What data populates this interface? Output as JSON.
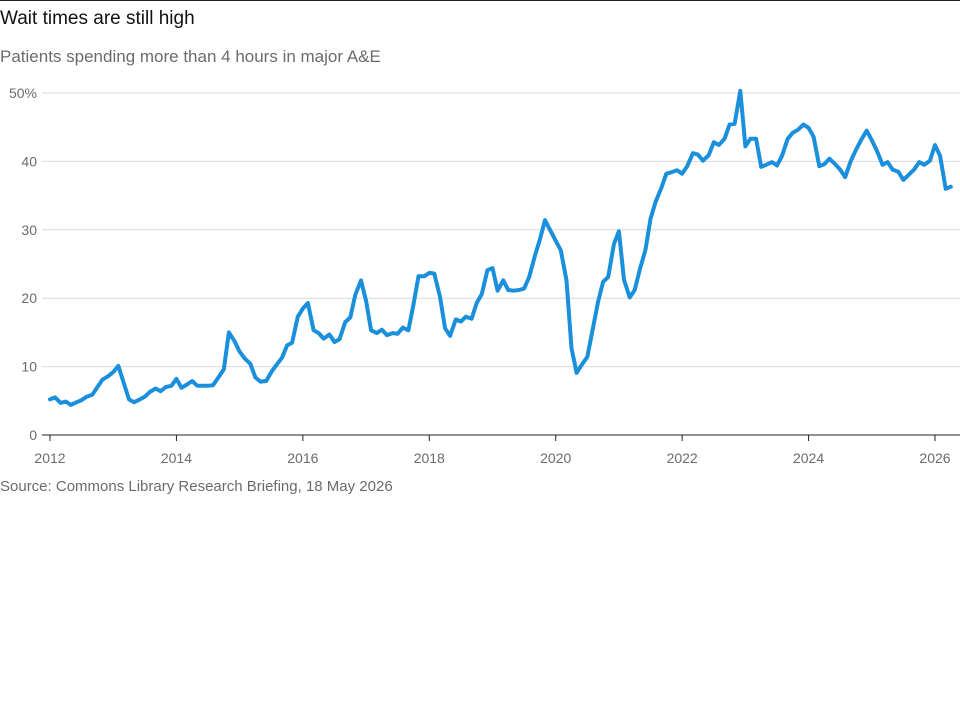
{
  "title": "Wait times are still high",
  "subtitle": "Patients spending more than 4 hours in major A&E",
  "source": "Source: Commons Library Research Briefing, 18 May 2026",
  "colors": {
    "line": "#1a8fdc",
    "grid": "#d9d9d9",
    "axis": "#222222",
    "text": "#6b6b6b"
  },
  "chart_data": {
    "type": "line",
    "title": "Wait times are still high",
    "subtitle": "Patients spending more than 4 hours in major A&E",
    "xlabel": "",
    "ylabel": "",
    "x_range": [
      2012,
      2026.2
    ],
    "ylim": [
      0,
      50
    ],
    "y_ticks": [
      {
        "value": 0,
        "label": "0"
      },
      {
        "value": 10,
        "label": "10"
      },
      {
        "value": 20,
        "label": "20"
      },
      {
        "value": 30,
        "label": "30"
      },
      {
        "value": 40,
        "label": "40"
      },
      {
        "value": 50,
        "label": "50%"
      }
    ],
    "x_ticks": [
      {
        "value": 2012,
        "label": "2012"
      },
      {
        "value": 2014,
        "label": "2014"
      },
      {
        "value": 2016,
        "label": "2016"
      },
      {
        "value": 2018,
        "label": "2018"
      },
      {
        "value": 2020,
        "label": "2020"
      },
      {
        "value": 2022,
        "label": "2022"
      },
      {
        "value": 2024,
        "label": "2024"
      },
      {
        "value": 2026,
        "label": "2026"
      }
    ],
    "grid": true,
    "series": [
      {
        "points": [
          [
            2012.0,
            5.2
          ],
          [
            2012.08,
            5.5
          ],
          [
            2012.17,
            4.7
          ],
          [
            2012.25,
            4.9
          ],
          [
            2012.33,
            4.4
          ],
          [
            2012.42,
            4.8
          ],
          [
            2012.5,
            5.1
          ],
          [
            2012.58,
            5.6
          ],
          [
            2012.67,
            5.9
          ],
          [
            2012.75,
            7.0
          ],
          [
            2012.83,
            8.1
          ],
          [
            2012.92,
            8.6
          ],
          [
            2013.0,
            9.2
          ],
          [
            2013.08,
            10.1
          ],
          [
            2013.17,
            7.5
          ],
          [
            2013.25,
            5.2
          ],
          [
            2013.33,
            4.8
          ],
          [
            2013.42,
            5.2
          ],
          [
            2013.5,
            5.6
          ],
          [
            2013.58,
            6.3
          ],
          [
            2013.67,
            6.8
          ],
          [
            2013.75,
            6.4
          ],
          [
            2013.83,
            7.0
          ],
          [
            2013.92,
            7.2
          ],
          [
            2014.0,
            8.2
          ],
          [
            2014.08,
            6.9
          ],
          [
            2014.17,
            7.4
          ],
          [
            2014.25,
            7.9
          ],
          [
            2014.33,
            7.2
          ],
          [
            2014.42,
            7.2
          ],
          [
            2014.5,
            7.2
          ],
          [
            2014.58,
            7.3
          ],
          [
            2014.67,
            8.5
          ],
          [
            2014.75,
            9.6
          ],
          [
            2014.83,
            15.0
          ],
          [
            2014.92,
            13.7
          ],
          [
            2015.0,
            12.2
          ],
          [
            2015.08,
            11.2
          ],
          [
            2015.17,
            10.4
          ],
          [
            2015.25,
            8.4
          ],
          [
            2015.33,
            7.8
          ],
          [
            2015.42,
            7.9
          ],
          [
            2015.5,
            9.2
          ],
          [
            2015.58,
            10.2
          ],
          [
            2015.67,
            11.3
          ],
          [
            2015.75,
            13.1
          ],
          [
            2015.83,
            13.5
          ],
          [
            2015.92,
            17.3
          ],
          [
            2016.0,
            18.5
          ],
          [
            2016.08,
            19.3
          ],
          [
            2016.17,
            15.3
          ],
          [
            2016.25,
            14.9
          ],
          [
            2016.33,
            14.1
          ],
          [
            2016.42,
            14.7
          ],
          [
            2016.5,
            13.6
          ],
          [
            2016.58,
            14.0
          ],
          [
            2016.67,
            16.5
          ],
          [
            2016.75,
            17.2
          ],
          [
            2016.83,
            20.5
          ],
          [
            2016.92,
            22.6
          ],
          [
            2017.0,
            19.6
          ],
          [
            2017.08,
            15.3
          ],
          [
            2017.17,
            14.9
          ],
          [
            2017.25,
            15.4
          ],
          [
            2017.33,
            14.6
          ],
          [
            2017.42,
            14.9
          ],
          [
            2017.5,
            14.8
          ],
          [
            2017.58,
            15.7
          ],
          [
            2017.67,
            15.3
          ],
          [
            2017.75,
            19.1
          ],
          [
            2017.83,
            23.2
          ],
          [
            2017.92,
            23.2
          ],
          [
            2018.0,
            23.7
          ],
          [
            2018.08,
            23.6
          ],
          [
            2018.17,
            20.2
          ],
          [
            2018.25,
            15.6
          ],
          [
            2018.33,
            14.5
          ],
          [
            2018.42,
            16.9
          ],
          [
            2018.5,
            16.6
          ],
          [
            2018.58,
            17.3
          ],
          [
            2018.67,
            17.0
          ],
          [
            2018.75,
            19.3
          ],
          [
            2018.83,
            20.6
          ],
          [
            2018.92,
            24.1
          ],
          [
            2019.0,
            24.4
          ],
          [
            2019.08,
            21.1
          ],
          [
            2019.17,
            22.6
          ],
          [
            2019.25,
            21.2
          ],
          [
            2019.33,
            21.1
          ],
          [
            2019.42,
            21.2
          ],
          [
            2019.5,
            21.4
          ],
          [
            2019.58,
            23.1
          ],
          [
            2019.67,
            26.2
          ],
          [
            2019.75,
            28.6
          ],
          [
            2019.83,
            31.4
          ],
          [
            2019.92,
            29.8
          ],
          [
            2020.0,
            28.4
          ],
          [
            2020.08,
            27.0
          ],
          [
            2020.17,
            22.6
          ],
          [
            2020.25,
            12.7
          ],
          [
            2020.33,
            9.1
          ],
          [
            2020.42,
            10.4
          ],
          [
            2020.5,
            11.4
          ],
          [
            2020.58,
            15.2
          ],
          [
            2020.67,
            19.5
          ],
          [
            2020.75,
            22.4
          ],
          [
            2020.83,
            23.1
          ],
          [
            2020.92,
            27.9
          ],
          [
            2021.0,
            29.8
          ],
          [
            2021.08,
            22.7
          ],
          [
            2021.17,
            20.1
          ],
          [
            2021.25,
            21.2
          ],
          [
            2021.33,
            24.2
          ],
          [
            2021.42,
            27.1
          ],
          [
            2021.5,
            31.6
          ],
          [
            2021.58,
            34.1
          ],
          [
            2021.67,
            36.1
          ],
          [
            2021.75,
            38.2
          ],
          [
            2021.83,
            38.4
          ],
          [
            2021.92,
            38.7
          ],
          [
            2022.0,
            38.2
          ],
          [
            2022.08,
            39.3
          ],
          [
            2022.17,
            41.2
          ],
          [
            2022.25,
            41.0
          ],
          [
            2022.33,
            40.1
          ],
          [
            2022.42,
            40.9
          ],
          [
            2022.5,
            42.8
          ],
          [
            2022.58,
            42.4
          ],
          [
            2022.67,
            43.3
          ],
          [
            2022.75,
            45.4
          ],
          [
            2022.83,
            45.5
          ],
          [
            2022.92,
            50.3
          ],
          [
            2023.0,
            42.2
          ],
          [
            2023.08,
            43.3
          ],
          [
            2023.17,
            43.3
          ],
          [
            2023.25,
            39.2
          ],
          [
            2023.33,
            39.5
          ],
          [
            2023.42,
            39.9
          ],
          [
            2023.5,
            39.4
          ],
          [
            2023.58,
            40.8
          ],
          [
            2023.67,
            43.3
          ],
          [
            2023.75,
            44.2
          ],
          [
            2023.83,
            44.6
          ],
          [
            2023.92,
            45.4
          ],
          [
            2024.0,
            44.9
          ],
          [
            2024.08,
            43.6
          ],
          [
            2024.17,
            39.3
          ],
          [
            2024.25,
            39.6
          ],
          [
            2024.33,
            40.4
          ],
          [
            2024.42,
            39.6
          ],
          [
            2024.5,
            38.8
          ],
          [
            2024.58,
            37.7
          ],
          [
            2024.67,
            40.1
          ],
          [
            2024.75,
            41.7
          ],
          [
            2024.83,
            43.1
          ],
          [
            2024.92,
            44.5
          ],
          [
            2025.0,
            43.1
          ],
          [
            2025.08,
            41.6
          ],
          [
            2025.17,
            39.5
          ],
          [
            2025.25,
            39.9
          ],
          [
            2025.33,
            38.8
          ],
          [
            2025.42,
            38.5
          ],
          [
            2025.5,
            37.3
          ],
          [
            2025.58,
            38.0
          ],
          [
            2025.67,
            38.8
          ],
          [
            2025.75,
            39.9
          ],
          [
            2025.83,
            39.5
          ],
          [
            2025.92,
            40.1
          ],
          [
            2026.0,
            42.4
          ],
          [
            2026.08,
            40.8
          ],
          [
            2026.17,
            36.0
          ],
          [
            2026.25,
            36.3
          ]
        ]
      }
    ]
  }
}
